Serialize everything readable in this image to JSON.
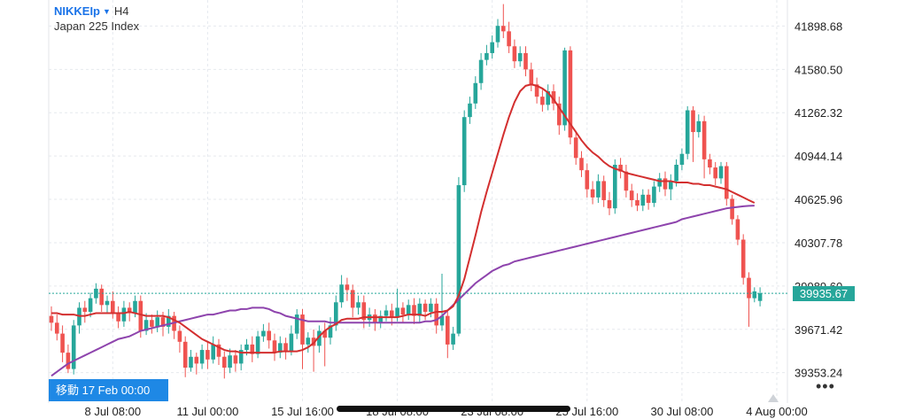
{
  "header": {
    "symbol": "NIKKEIp",
    "timeframe": "H4",
    "description": "Japan 225 Index",
    "dropdown_icon": "triangle-down-icon"
  },
  "goto_label": "移動 17 Feb 00:00",
  "more_icon": "ellipsis-icon",
  "more_label": "•••",
  "colors": {
    "up": "#26a69a",
    "down": "#ef5350",
    "ma_fast": "#d32f2f",
    "ma_slow": "#8e44ad",
    "price_line": "#26a69a",
    "accent": "#1e88e5"
  },
  "chart_data": {
    "type": "candlestick",
    "symbol": "NIKKEIp",
    "timeframe": "H4",
    "ylim": [
      39130,
      42090
    ],
    "y_ticks": [
      41898.68,
      41580.5,
      41262.32,
      40944.14,
      40625.96,
      40307.78,
      39989.6,
      39671.42,
      39353.24
    ],
    "x_ticks": [
      "8 Jul 08:00",
      "11 Jul 00:00",
      "15 Jul 16:00",
      "18 Jul 08:00",
      "23 Jul 08:00",
      "25 Jul 16:00",
      "30 Jul 08:00",
      "4 Aug 00:00"
    ],
    "x_tick_index": [
      11,
      28,
      45,
      62,
      79,
      96,
      113,
      130
    ],
    "current_price": 39935.67,
    "candles": [
      [
        39770,
        39720,
        39840,
        39660
      ],
      [
        39720,
        39640,
        39780,
        39590
      ],
      [
        39640,
        39500,
        39700,
        39430
      ],
      [
        39500,
        39380,
        39560,
        39350
      ],
      [
        39380,
        39700,
        39740,
        39340
      ],
      [
        39700,
        39830,
        39870,
        39640
      ],
      [
        39830,
        39800,
        39880,
        39720
      ],
      [
        39800,
        39900,
        39940,
        39760
      ],
      [
        39900,
        39970,
        40010,
        39860
      ],
      [
        39970,
        39850,
        40000,
        39800
      ],
      [
        39850,
        39880,
        39920,
        39790
      ],
      [
        39880,
        39790,
        39950,
        39750
      ],
      [
        39790,
        39730,
        39840,
        39680
      ],
      [
        39730,
        39830,
        39880,
        39690
      ],
      [
        39830,
        39790,
        39870,
        39730
      ],
      [
        39790,
        39880,
        39920,
        39760
      ],
      [
        39880,
        39660,
        39920,
        39610
      ],
      [
        39660,
        39740,
        39790,
        39630
      ],
      [
        39740,
        39690,
        39780,
        39640
      ],
      [
        39690,
        39760,
        39810,
        39650
      ],
      [
        39760,
        39690,
        39800,
        39620
      ],
      [
        39690,
        39770,
        39820,
        39640
      ],
      [
        39770,
        39660,
        39800,
        39600
      ],
      [
        39660,
        39580,
        39700,
        39500
      ],
      [
        39580,
        39390,
        39620,
        39320
      ],
      [
        39390,
        39470,
        39520,
        39360
      ],
      [
        39470,
        39420,
        39500,
        39340
      ],
      [
        39420,
        39520,
        39560,
        39380
      ],
      [
        39520,
        39450,
        39580,
        39380
      ],
      [
        39450,
        39560,
        39620,
        39420
      ],
      [
        39560,
        39470,
        39600,
        39410
      ],
      [
        39470,
        39390,
        39510,
        39310
      ],
      [
        39390,
        39480,
        39530,
        39350
      ],
      [
        39480,
        39420,
        39520,
        39360
      ],
      [
        39420,
        39520,
        39560,
        39370
      ],
      [
        39520,
        39560,
        39600,
        39480
      ],
      [
        39560,
        39490,
        39620,
        39430
      ],
      [
        39490,
        39620,
        39660,
        39460
      ],
      [
        39620,
        39660,
        39710,
        39580
      ],
      [
        39660,
        39590,
        39720,
        39530
      ],
      [
        39590,
        39500,
        39640,
        39440
      ],
      [
        39500,
        39570,
        39620,
        39460
      ],
      [
        39570,
        39510,
        39610,
        39450
      ],
      [
        39510,
        39640,
        39700,
        39480
      ],
      [
        39640,
        39780,
        39820,
        39600
      ],
      [
        39780,
        39560,
        39820,
        39380
      ],
      [
        39560,
        39610,
        39650,
        39500
      ],
      [
        39610,
        39550,
        39670,
        39360
      ],
      [
        39550,
        39660,
        39700,
        39500
      ],
      [
        39660,
        39610,
        39720,
        39400
      ],
      [
        39610,
        39700,
        39760,
        39560
      ],
      [
        39700,
        39870,
        39920,
        39660
      ],
      [
        39870,
        40000,
        40070,
        39830
      ],
      [
        40000,
        39960,
        40050,
        39880
      ],
      [
        39960,
        39830,
        40000,
        39760
      ],
      [
        39830,
        39870,
        39920,
        39780
      ],
      [
        39870,
        39740,
        39920,
        39680
      ],
      [
        39740,
        39780,
        39830,
        39690
      ],
      [
        39780,
        39720,
        39820,
        39660
      ],
      [
        39720,
        39770,
        39810,
        39680
      ],
      [
        39770,
        39810,
        39850,
        39730
      ],
      [
        39810,
        39760,
        39860,
        39700
      ],
      [
        39760,
        39830,
        39970,
        39730
      ],
      [
        39830,
        39780,
        39870,
        39720
      ],
      [
        39780,
        39850,
        39890,
        39740
      ],
      [
        39850,
        39770,
        39900,
        39710
      ],
      [
        39770,
        39860,
        39900,
        39720
      ],
      [
        39860,
        39800,
        39890,
        39740
      ],
      [
        39800,
        39860,
        39900,
        39760
      ],
      [
        39860,
        39700,
        39900,
        39640
      ],
      [
        39700,
        39770,
        40080,
        39660
      ],
      [
        39770,
        39560,
        39810,
        39460
      ],
      [
        39560,
        39640,
        39690,
        39520
      ],
      [
        39640,
        40730,
        40790,
        39620
      ],
      [
        40730,
        41230,
        41280,
        40680
      ],
      [
        41230,
        41330,
        41380,
        41180
      ],
      [
        41330,
        41480,
        41530,
        41290
      ],
      [
        41480,
        41650,
        41700,
        41430
      ],
      [
        41650,
        41700,
        41760,
        41610
      ],
      [
        41700,
        41780,
        41830,
        41660
      ],
      [
        41780,
        41900,
        41950,
        41740
      ],
      [
        41900,
        41860,
        42060,
        41810
      ],
      [
        41860,
        41750,
        41930,
        41700
      ],
      [
        41750,
        41640,
        41800,
        41590
      ],
      [
        41640,
        41700,
        41750,
        41600
      ],
      [
        41700,
        41580,
        41750,
        41530
      ],
      [
        41580,
        41470,
        41630,
        41420
      ],
      [
        41470,
        41380,
        41520,
        41330
      ],
      [
        41380,
        41320,
        41430,
        41270
      ],
      [
        41320,
        41420,
        41470,
        41280
      ],
      [
        41420,
        41330,
        41470,
        41280
      ],
      [
        41330,
        41170,
        41380,
        41100
      ],
      [
        41170,
        41720,
        41740,
        41130
      ],
      [
        41720,
        41080,
        41750,
        41030
      ],
      [
        41080,
        40930,
        41130,
        40880
      ],
      [
        40930,
        40840,
        40980,
        40790
      ],
      [
        40840,
        40700,
        40890,
        40640
      ],
      [
        40700,
        40640,
        40760,
        40590
      ],
      [
        40640,
        40760,
        40810,
        40600
      ],
      [
        40760,
        40620,
        40800,
        40570
      ],
      [
        40620,
        40560,
        40680,
        40510
      ],
      [
        40560,
        40880,
        40920,
        40520
      ],
      [
        40880,
        40830,
        40930,
        40780
      ],
      [
        40830,
        40690,
        40880,
        40640
      ],
      [
        40690,
        40620,
        40740,
        40570
      ],
      [
        40620,
        40580,
        40670,
        40540
      ],
      [
        40580,
        40660,
        40700,
        40540
      ],
      [
        40660,
        40600,
        40700,
        40550
      ],
      [
        40600,
        40720,
        40760,
        40570
      ],
      [
        40720,
        40780,
        40820,
        40680
      ],
      [
        40780,
        40700,
        40830,
        40650
      ],
      [
        40700,
        40760,
        40810,
        40620
      ],
      [
        40760,
        40880,
        40920,
        40720
      ],
      [
        40880,
        40960,
        41000,
        40840
      ],
      [
        40960,
        41280,
        41310,
        40920
      ],
      [
        41280,
        41120,
        41310,
        40900
      ],
      [
        41120,
        41200,
        41250,
        41080
      ],
      [
        41200,
        40920,
        41240,
        40780
      ],
      [
        40920,
        40860,
        40960,
        40810
      ],
      [
        40860,
        40780,
        40900,
        40730
      ],
      [
        40780,
        40870,
        40900,
        40740
      ],
      [
        40870,
        40630,
        40900,
        40580
      ],
      [
        40630,
        40480,
        40660,
        40440
      ],
      [
        40480,
        40330,
        40510,
        40290
      ],
      [
        40330,
        40050,
        40370,
        40000
      ],
      [
        40050,
        39900,
        40090,
        39690
      ],
      [
        39900,
        39950,
        39980,
        39870
      ],
      [
        39880,
        39936,
        39980,
        39840
      ]
    ],
    "ma_fast_path": [
      39790,
      39790,
      39780,
      39780,
      39780,
      39770,
      39770,
      39780,
      39790,
      39790,
      39790,
      39790,
      39790,
      39790,
      39800,
      39790,
      39780,
      39770,
      39770,
      39770,
      39770,
      39760,
      39740,
      39720,
      39690,
      39660,
      39630,
      39600,
      39580,
      39560,
      39540,
      39520,
      39510,
      39510,
      39500,
      39500,
      39500,
      39500,
      39500,
      39500,
      39500,
      39510,
      39510,
      39510,
      39510,
      39520,
      39540,
      39570,
      39620,
      39660,
      39690,
      39710,
      39740,
      39750,
      39750,
      39750,
      39760,
      39760,
      39760,
      39760,
      39760,
      39760,
      39760,
      39770,
      39780,
      39780,
      39780,
      39770,
      39790,
      39800,
      39800,
      39810,
      39840,
      39920,
      40040,
      40200,
      40360,
      40530,
      40680,
      40820,
      40960,
      41100,
      41230,
      41340,
      41420,
      41460,
      41470,
      41460,
      41440,
      41410,
      41360,
      41300,
      41240,
      41180,
      41120,
      41060,
      41010,
      40970,
      40940,
      40900,
      40870,
      40850,
      40840,
      40820,
      40810,
      40800,
      40790,
      40780,
      40770,
      40760,
      40760,
      40760,
      40750,
      40750,
      40750,
      40740,
      40740,
      40730,
      40730,
      40720,
      40710,
      40700,
      40680,
      40660,
      40640,
      40620,
      40600
    ],
    "ma_slow_path": [
      39330,
      39360,
      39390,
      39420,
      39440,
      39460,
      39480,
      39500,
      39520,
      39540,
      39560,
      39580,
      39600,
      39610,
      39620,
      39640,
      39660,
      39670,
      39680,
      39690,
      39700,
      39710,
      39720,
      39730,
      39740,
      39750,
      39760,
      39770,
      39780,
      39780,
      39790,
      39800,
      39810,
      39810,
      39820,
      39820,
      39830,
      39830,
      39830,
      39820,
      39800,
      39790,
      39770,
      39760,
      39750,
      39740,
      39730,
      39730,
      39730,
      39730,
      39720,
      39720,
      39720,
      39720,
      39720,
      39720,
      39720,
      39720,
      39720,
      39720,
      39720,
      39720,
      39720,
      39720,
      39720,
      39720,
      39720,
      39730,
      39730,
      39740,
      39770,
      39810,
      39850,
      39890,
      39930,
      39970,
      40010,
      40040,
      40070,
      40100,
      40120,
      40140,
      40150,
      40170,
      40180,
      40190,
      40200,
      40210,
      40220,
      40230,
      40240,
      40250,
      40260,
      40270,
      40280,
      40290,
      40300,
      40310,
      40320,
      40330,
      40340,
      40350,
      40360,
      40370,
      40380,
      40390,
      40400,
      40410,
      40420,
      40430,
      40440,
      40450,
      40460,
      40480,
      40490,
      40500,
      40510,
      40520,
      40530,
      40540,
      40550,
      40560,
      40565,
      40570,
      40575,
      40578,
      40580
    ]
  }
}
